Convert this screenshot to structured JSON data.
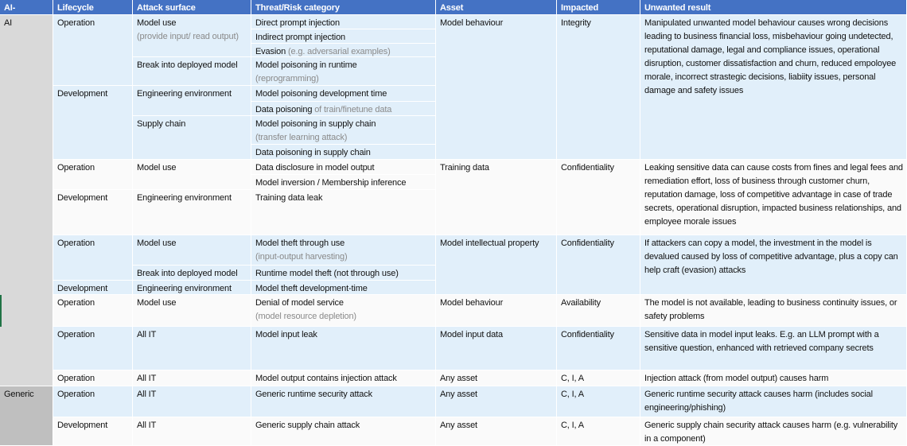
{
  "header": [
    "AI-specific?",
    "Lifecycle",
    "Attack surface",
    "Threat/Risk category",
    "Asset",
    "Impacted",
    "Unwanted result"
  ],
  "groups": {
    "ai": "AI",
    "generic": "Generic"
  },
  "lifecycle": {
    "operation": "Operation",
    "development": "Development"
  },
  "surface": {
    "model_use": "Model use",
    "model_use_note": "(provide input/ read output)",
    "break_in": "Break into deployed model",
    "eng_env": "Engineering environment",
    "supply_chain": "Supply chain",
    "all_it": "All IT"
  },
  "threats": {
    "direct_pi": "Direct prompt injection",
    "indirect_pi": "Indirect prompt injection",
    "evasion": "Evasion",
    "evasion_note": "(e.g. adversarial examples)",
    "poison_runtime": "Model poisoning in runtime",
    "poison_runtime_note": "(reprogramming)",
    "poison_dev": "Model poisoning development time",
    "data_poison": "Data poisoning",
    "data_poison_note": "of train/finetune data",
    "poison_supply": "Model poisoning in supply chain",
    "poison_supply_note": "(transfer learning attack)",
    "data_poison_supply": "Data poisoning in supply chain",
    "disclosure": "Data disclosure in model output",
    "inversion": "Model inversion / Membership inference",
    "training_leak": "Training data leak",
    "theft_use": "Model theft through use",
    "theft_use_note": "(input-output harvesting)",
    "theft_runtime": "Runtime model theft (not through use)",
    "theft_dev": "Model theft development-time",
    "dos": "Denial of model service",
    "dos_note": "(model resource depletion)",
    "input_leak": "Model input leak",
    "output_injection": "Model output contains injection attack",
    "generic_runtime": "Generic runtime security attack",
    "generic_supply": "Generic supply chain attack"
  },
  "assets": {
    "model_behaviour": "Model behaviour",
    "training_data": "Training data",
    "model_ip": "Model intellectual property",
    "model_input": "Model input data",
    "any": "Any asset"
  },
  "impacted": {
    "integrity": "Integrity",
    "confidentiality": "Confidentiality",
    "availability": "Availability",
    "cia": "C, I, A"
  },
  "results": {
    "integrity": "Manipulated unwanted model behaviour causes wrong decisions leading to business financial loss, misbehaviour going undetected, reputational damage, legal and compliance issues, operational disruption, customer dissatisfaction and churn, reduced empoloyee morale, incorrect strastegic decisions, liabiity issues, personal damage and safety issues",
    "training_data": "Leaking sensitive data can cause costs from fines and legal fees and remediation effort, loss of business through customer churn, reputation damage, loss of competitive advantage in case of trade secrets, operational disruption, impacted business relationships, and employee morale issues",
    "model_ip": "If attackers can copy a model, the investment in the model is devalued caused by loss of competitive advantage, plus a copy can help craft (evasion) attacks",
    "availability": "The model is not available, leading to business continuity issues, or safety problems",
    "input_leak": "Sensitive data in model input leaks. E.g. an LLM prompt with a sensitive question, enhanced with retrieved company secrets",
    "output_injection": "Injection attack (from model output) causes harm",
    "generic_runtime": "Generic runtime security attack causes harm (includes social engineering/phishing)",
    "generic_supply": "Generic supply chain security attack causes harm (e.g. vulnerability in a component)"
  },
  "colors": {
    "header": "#4472C4",
    "band_blue": "#E1EFFA",
    "band_white": "#FAFAFA",
    "group_ai": "#D9D9D9",
    "group_generic": "#BFBFBF"
  }
}
